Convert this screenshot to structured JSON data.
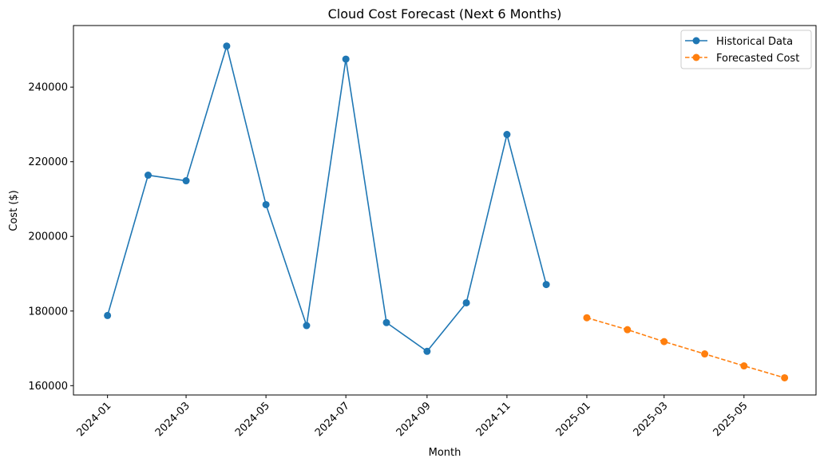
{
  "chart_data": {
    "type": "line",
    "title": "Cloud Cost Forecast (Next 6 Months)",
    "xlabel": "Month",
    "ylabel": "Cost ($)",
    "xlim": [
      "2023-12-06",
      "2025-06-25"
    ],
    "ylim": [
      157500,
      256500
    ],
    "x_ticks": [
      "2024-01",
      "2024-03",
      "2024-05",
      "2024-07",
      "2024-09",
      "2024-11",
      "2025-01",
      "2025-03",
      "2025-05"
    ],
    "y_ticks": [
      160000,
      180000,
      200000,
      220000,
      240000
    ],
    "legend_position": "top-right",
    "grid": false,
    "series": [
      {
        "name": "Historical Data",
        "color": "#1f77b4",
        "line_style": "solid",
        "marker": "circle",
        "x": [
          "2024-01-01",
          "2024-02-01",
          "2024-03-01",
          "2024-04-01",
          "2024-05-01",
          "2024-06-01",
          "2024-07-01",
          "2024-08-01",
          "2024-09-01",
          "2024-10-01",
          "2024-11-01",
          "2024-12-01"
        ],
        "values": [
          178800,
          216400,
          214900,
          251000,
          208500,
          176100,
          247500,
          176900,
          169200,
          182200,
          227300,
          187100
        ]
      },
      {
        "name": "Forecasted Cost",
        "color": "#ff7f0e",
        "line_style": "dashed",
        "marker": "circle",
        "x": [
          "2025-01-01",
          "2025-02-01",
          "2025-03-01",
          "2025-04-01",
          "2025-05-01",
          "2025-06-01"
        ],
        "values": [
          178200,
          175000,
          171800,
          168500,
          165300,
          162100
        ]
      }
    ]
  }
}
